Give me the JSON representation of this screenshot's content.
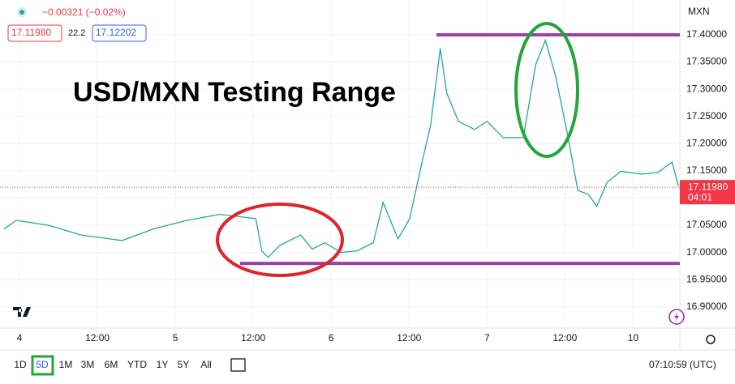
{
  "header": {
    "change": "−0.00321 (−0.02%)",
    "bid": "17.11980",
    "spread": "22.2",
    "ask": "17.12202"
  },
  "chart_data": {
    "type": "line",
    "title": "USD/MXN Testing Range",
    "currency": "MXN",
    "x": [
      -2.4,
      -0.5,
      4.5,
      9.5,
      15.8,
      20.8,
      25.8,
      30.8,
      34.5,
      36.4,
      37.3,
      38.3,
      40.1,
      43.3,
      45.1,
      47,
      49.5,
      52,
      54.5,
      56,
      58.3,
      60.1,
      62,
      63.3,
      64.8,
      65.8,
      67.6,
      70.1,
      72,
      74.5,
      77.6,
      79.5,
      81,
      82.6,
      84.5,
      86,
      87.6,
      88.9,
      90.5,
      92.6,
      95.8,
      98.3,
      100.5,
      101.5
    ],
    "values": [
      17.043,
      17.059,
      17.05,
      17.032,
      17.022,
      17.044,
      17.059,
      17.07,
      17.065,
      17.062,
      17.003,
      16.991,
      17.013,
      17.032,
      17.006,
      17.018,
      17.0,
      17.003,
      17.018,
      17.092,
      17.025,
      17.062,
      17.166,
      17.233,
      17.375,
      17.293,
      17.241,
      17.226,
      17.241,
      17.211,
      17.211,
      17.345,
      17.39,
      17.323,
      17.211,
      17.114,
      17.107,
      17.085,
      17.129,
      17.149,
      17.144,
      17.147,
      17.166,
      17.122
    ],
    "color": "#26a69a",
    "xlim": [
      -3,
      101.7
    ],
    "ylim": [
      16.861,
      17.464
    ],
    "xticks": [
      {
        "value": 0,
        "label": "4"
      },
      {
        "value": 12,
        "label": "12:00"
      },
      {
        "value": 24,
        "label": "5"
      },
      {
        "value": 36,
        "label": "12:00"
      },
      {
        "value": 48,
        "label": "6"
      },
      {
        "value": 60,
        "label": "12:00"
      },
      {
        "value": 72,
        "label": "7"
      },
      {
        "value": 84,
        "label": "12:00"
      },
      {
        "value": 94.5,
        "label": "10"
      }
    ],
    "yticks": [
      {
        "value": 16.9,
        "label": "16.90000"
      },
      {
        "value": 16.95,
        "label": "16.95000"
      },
      {
        "value": 17.0,
        "label": "17.00000"
      },
      {
        "value": 17.05,
        "label": "17.05000"
      },
      {
        "value": 17.1,
        "label": "17.10000"
      },
      {
        "value": 17.15,
        "label": "17.15000"
      },
      {
        "value": 17.2,
        "label": "17.20000"
      },
      {
        "value": 17.25,
        "label": "17.25000"
      },
      {
        "value": 17.3,
        "label": "17.30000"
      },
      {
        "value": 17.35,
        "label": "17.35000"
      },
      {
        "value": 17.4,
        "label": "17.40000"
      }
    ],
    "grid": true,
    "last_price": {
      "value": 17.1198,
      "label": "17.11980"
    },
    "countdown": "04:01",
    "levels": [
      17.4,
      16.98
    ]
  },
  "toolbar": {
    "ranges": [
      "1D",
      "5D",
      "1M",
      "3M",
      "6M",
      "YTD",
      "1Y",
      "5Y",
      "All"
    ],
    "active": 1,
    "time": "07:10:59 (UTC)"
  }
}
